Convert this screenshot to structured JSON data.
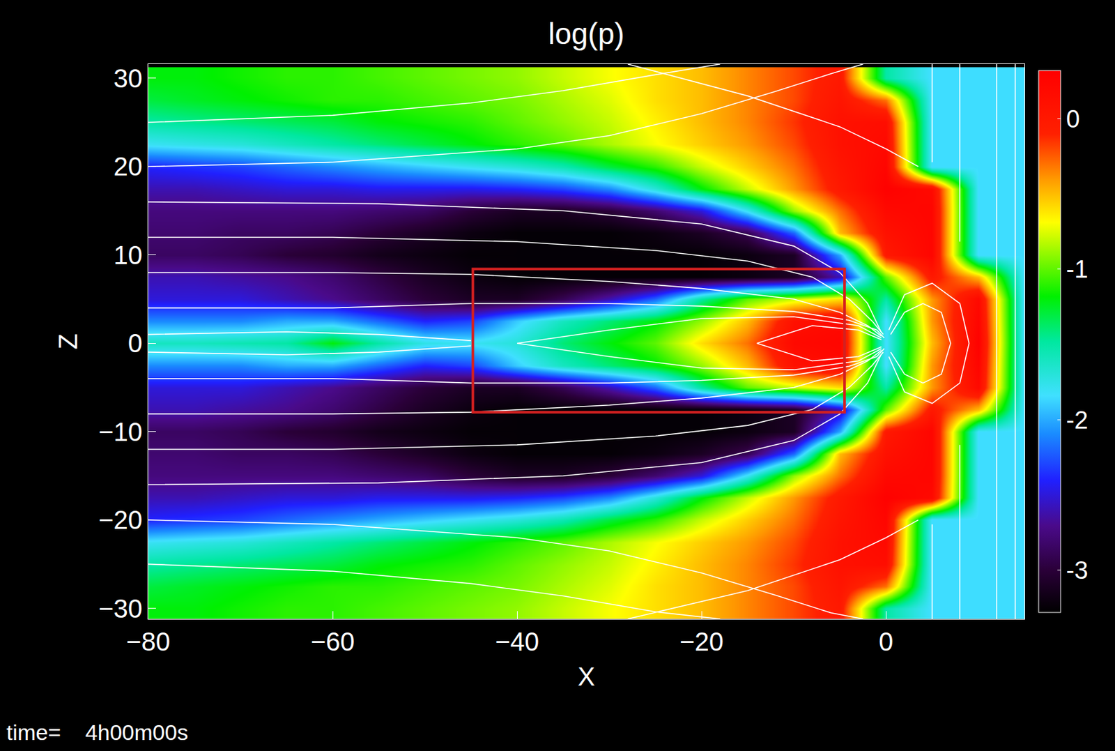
{
  "chart_data": {
    "type": "heatmap",
    "title": "log(p)",
    "x_label": "X",
    "y_label": "Z",
    "annotations": [
      "time=    4h00m00s"
    ],
    "xlim": [
      -80,
      15
    ],
    "ylim": [
      -31.2,
      31.6
    ],
    "xticks": [
      -80,
      -60,
      -40,
      -20,
      0
    ],
    "yticks": [
      -30,
      -20,
      -10,
      0,
      10,
      20,
      30
    ],
    "x": [
      -80,
      -75,
      -70,
      -65,
      -60,
      -55,
      -50,
      -45,
      -40,
      -35,
      -30,
      -25,
      -20,
      -15,
      -10,
      -5,
      0,
      5,
      10,
      15
    ],
    "y": [
      -30,
      -27.5,
      -25,
      -22.5,
      -20,
      -17.5,
      -15,
      -12.5,
      -10,
      -7.5,
      -5,
      -2.5,
      0,
      2.5,
      5,
      7.5,
      10,
      12.5,
      15,
      17.5,
      20,
      22.5,
      25,
      27.5,
      30
    ],
    "values": [
      [
        -1.2,
        -1.2,
        -1.15,
        -1.1,
        -1.1,
        -1.05,
        -1.0,
        -0.95,
        -0.9,
        -0.8,
        -0.7,
        -0.6,
        -0.5,
        -0.35,
        -0.2,
        0.0,
        -1.5,
        -1.85,
        -1.85,
        -1.85
      ],
      [
        -1.3,
        -1.25,
        -1.2,
        -1.15,
        -1.1,
        -1.1,
        -1.05,
        -1.0,
        -0.95,
        -0.85,
        -0.75,
        -0.6,
        -0.5,
        -0.35,
        -0.2,
        0.05,
        -0.3,
        -1.85,
        -1.85,
        -1.85
      ],
      [
        -1.5,
        -1.45,
        -1.4,
        -1.35,
        -1.3,
        -1.2,
        -1.15,
        -1.1,
        -1.0,
        -0.9,
        -0.8,
        -0.65,
        -0.5,
        -0.35,
        -0.15,
        0.1,
        0.15,
        -1.85,
        -1.85,
        -1.85
      ],
      [
        -1.8,
        -1.75,
        -1.7,
        -1.6,
        -1.5,
        -1.4,
        -1.3,
        -1.2,
        -1.1,
        -1.0,
        -0.85,
        -0.7,
        -0.55,
        -0.4,
        -0.2,
        0.1,
        0.2,
        -1.85,
        -1.85,
        -1.85
      ],
      [
        -2.4,
        -2.35,
        -2.3,
        -2.2,
        -2.1,
        -2.0,
        -1.9,
        -1.8,
        -1.7,
        -1.55,
        -1.3,
        -1.1,
        -0.8,
        -0.55,
        -0.3,
        0.05,
        0.25,
        -1.85,
        -1.85,
        -1.85
      ],
      [
        -2.6,
        -2.6,
        -2.55,
        -2.5,
        -2.5,
        -2.45,
        -2.45,
        -2.45,
        -2.4,
        -2.3,
        -2.1,
        -1.7,
        -1.2,
        -0.8,
        -0.4,
        0.0,
        0.3,
        0.2,
        -1.85,
        -1.85
      ],
      [
        -2.75,
        -2.75,
        -2.75,
        -2.75,
        -2.75,
        -2.8,
        -2.85,
        -3.0,
        -3.1,
        -3.1,
        -3.0,
        -2.8,
        -2.5,
        -1.8,
        -0.9,
        -0.3,
        0.2,
        0.25,
        -1.85,
        -1.85
      ],
      [
        -2.8,
        -2.8,
        -2.85,
        -2.85,
        -2.9,
        -3.0,
        -3.1,
        -3.2,
        -3.25,
        -3.25,
        -3.25,
        -3.2,
        -3.1,
        -2.9,
        -2.2,
        -0.5,
        0.1,
        0.25,
        -1.85,
        -1.85
      ],
      [
        -2.85,
        -2.85,
        -2.9,
        -3.0,
        -3.05,
        -3.15,
        -3.2,
        -3.25,
        -3.25,
        -3.25,
        -3.25,
        -3.25,
        -3.25,
        -3.2,
        -3.1,
        -2.0,
        0.0,
        0.25,
        -1.85,
        -1.85
      ],
      [
        -2.6,
        -2.6,
        -2.65,
        -2.7,
        -2.8,
        -2.95,
        -3.1,
        -3.2,
        -3.25,
        -3.25,
        -3.25,
        -3.25,
        -3.25,
        -3.2,
        -3.1,
        -2.6,
        -1.0,
        0.0,
        -0.5,
        -1.85
      ],
      [
        -2.5,
        -2.5,
        -2.5,
        -2.6,
        -2.7,
        -2.85,
        -3.0,
        -3.1,
        -3.1,
        -2.9,
        -2.6,
        -2.2,
        -1.5,
        -1.0,
        -0.8,
        -0.6,
        -1.5,
        -0.4,
        0.2,
        -1.85
      ],
      [
        -2.1,
        -2.1,
        -2.1,
        -2.0,
        -2.0,
        -2.2,
        -2.4,
        -2.3,
        -1.9,
        -1.6,
        -1.4,
        -1.2,
        -0.9,
        -0.5,
        0.1,
        0.2,
        -1.85,
        -0.4,
        0.25,
        -1.85
      ],
      [
        -1.6,
        -1.6,
        -1.55,
        -1.5,
        -1.2,
        -1.5,
        -1.75,
        -1.8,
        -1.7,
        -1.4,
        -1.2,
        -1.0,
        -0.6,
        -0.3,
        0.2,
        0.25,
        -1.85,
        -0.5,
        0.3,
        -1.85
      ],
      [
        -2.1,
        -2.1,
        -2.1,
        -2.0,
        -2.0,
        -2.2,
        -2.4,
        -2.3,
        -1.9,
        -1.6,
        -1.4,
        -1.2,
        -0.9,
        -0.5,
        0.1,
        0.2,
        -1.85,
        -0.4,
        0.25,
        -1.85
      ],
      [
        -2.5,
        -2.5,
        -2.5,
        -2.6,
        -2.7,
        -2.85,
        -3.0,
        -3.1,
        -3.1,
        -2.9,
        -2.6,
        -2.2,
        -1.5,
        -1.0,
        -0.8,
        -0.6,
        -1.5,
        -0.4,
        0.2,
        -1.85
      ],
      [
        -2.6,
        -2.6,
        -2.65,
        -2.7,
        -2.8,
        -2.95,
        -3.1,
        -3.2,
        -3.25,
        -3.25,
        -3.25,
        -3.25,
        -3.25,
        -3.2,
        -3.1,
        -2.6,
        -1.0,
        0.0,
        -0.5,
        -1.85
      ],
      [
        -2.85,
        -2.85,
        -2.9,
        -3.0,
        -3.05,
        -3.15,
        -3.2,
        -3.25,
        -3.25,
        -3.25,
        -3.25,
        -3.25,
        -3.25,
        -3.2,
        -3.1,
        -2.0,
        0.0,
        0.25,
        -1.85,
        -1.85
      ],
      [
        -2.8,
        -2.8,
        -2.85,
        -2.85,
        -2.9,
        -3.0,
        -3.1,
        -3.2,
        -3.25,
        -3.25,
        -3.25,
        -3.2,
        -3.1,
        -2.9,
        -2.2,
        -0.5,
        0.1,
        0.25,
        -1.85,
        -1.85
      ],
      [
        -2.75,
        -2.75,
        -2.75,
        -2.75,
        -2.75,
        -2.8,
        -2.85,
        -3.0,
        -3.1,
        -3.1,
        -3.0,
        -2.8,
        -2.5,
        -1.8,
        -0.9,
        -0.3,
        0.2,
        0.25,
        -1.85,
        -1.85
      ],
      [
        -2.6,
        -2.6,
        -2.55,
        -2.5,
        -2.5,
        -2.45,
        -2.45,
        -2.45,
        -2.4,
        -2.3,
        -2.1,
        -1.7,
        -1.2,
        -0.8,
        -0.4,
        0.0,
        0.3,
        0.2,
        -1.85,
        -1.85
      ],
      [
        -2.4,
        -2.35,
        -2.3,
        -2.2,
        -2.1,
        -2.0,
        -1.9,
        -1.8,
        -1.7,
        -1.55,
        -1.3,
        -1.1,
        -0.8,
        -0.55,
        -0.3,
        0.05,
        0.25,
        -1.85,
        -1.85,
        -1.85
      ],
      [
        -1.8,
        -1.75,
        -1.7,
        -1.6,
        -1.5,
        -1.4,
        -1.3,
        -1.2,
        -1.1,
        -1.0,
        -0.85,
        -0.7,
        -0.55,
        -0.4,
        -0.2,
        0.1,
        0.2,
        -1.85,
        -1.85,
        -1.85
      ],
      [
        -1.5,
        -1.45,
        -1.4,
        -1.35,
        -1.3,
        -1.2,
        -1.15,
        -1.1,
        -1.0,
        -0.9,
        -0.8,
        -0.65,
        -0.5,
        -0.35,
        -0.15,
        0.1,
        0.15,
        -1.85,
        -1.85,
        -1.85
      ],
      [
        -1.3,
        -1.25,
        -1.2,
        -1.15,
        -1.1,
        -1.1,
        -1.05,
        -1.0,
        -0.95,
        -0.85,
        -0.75,
        -0.6,
        -0.5,
        -0.35,
        -0.2,
        0.05,
        -0.3,
        -1.85,
        -1.85,
        -1.85
      ],
      [
        -1.2,
        -1.2,
        -1.15,
        -1.1,
        -1.1,
        -1.05,
        -1.0,
        -0.95,
        -0.9,
        -0.8,
        -0.7,
        -0.6,
        -0.5,
        -0.35,
        -0.2,
        0.0,
        -1.5,
        -1.85,
        -1.85,
        -1.85
      ]
    ],
    "colorbar_range": [
      -3.28,
      0.32
    ],
    "colorbar_ticks": [
      -3,
      -2,
      -1,
      0
    ],
    "field_lines": {
      "color": "#ffffff",
      "lines": [
        {
          "x": [
            -80,
            -60,
            -45,
            -30,
            -20,
            -10,
            -5,
            -2,
            -0.5
          ],
          "y": [
            8,
            8,
            7.8,
            7,
            6.2,
            5,
            3.5,
            2,
            0.8
          ]
        },
        {
          "x": [
            -80,
            -60,
            -45,
            -30,
            -20,
            -10,
            -5,
            -2,
            -0.5
          ],
          "y": [
            -8,
            -8,
            -7.8,
            -7,
            -6.2,
            -5,
            -3.5,
            -2,
            -0.8
          ]
        },
        {
          "x": [
            -80,
            -60,
            -40,
            -25,
            -15,
            -8,
            -4,
            -1.5,
            -0.3
          ],
          "y": [
            12,
            12,
            11.5,
            10.5,
            9.3,
            7.5,
            5,
            2.5,
            1
          ]
        },
        {
          "x": [
            -80,
            -60,
            -40,
            -25,
            -15,
            -8,
            -4,
            -1.5,
            -0.3
          ],
          "y": [
            -12,
            -12,
            -11.5,
            -10.5,
            -9.3,
            -7.5,
            -5,
            -2.5,
            -1
          ]
        },
        {
          "x": [
            -80,
            -55,
            -35,
            -20,
            -10,
            -5,
            -2,
            -0.5
          ],
          "y": [
            16,
            15.8,
            15,
            13.5,
            11,
            8,
            4.5,
            1.2
          ]
        },
        {
          "x": [
            -80,
            -55,
            -35,
            -20,
            -10,
            -5,
            -2,
            -0.5
          ],
          "y": [
            -16,
            -15.8,
            -15,
            -13.5,
            -11,
            -8,
            -4.5,
            -1.2
          ]
        },
        {
          "x": [
            -80,
            -60,
            -40,
            -30,
            -20,
            -12,
            -6,
            -2.5
          ],
          "y": [
            20,
            20.5,
            22,
            23.5,
            26,
            28.5,
            30.5,
            31.6
          ]
        },
        {
          "x": [
            -80,
            -60,
            -40,
            -30,
            -20,
            -12,
            -6,
            -2.5
          ],
          "y": [
            -20,
            -20.5,
            -22,
            -23.5,
            -26,
            -28.5,
            -30.5,
            -31.2
          ]
        },
        {
          "x": [
            -80,
            -60,
            -45,
            -35,
            -25,
            -18
          ],
          "y": [
            25,
            25.8,
            27.2,
            28.6,
            30.4,
            31.6
          ]
        },
        {
          "x": [
            -80,
            -60,
            -45,
            -35,
            -25,
            -18
          ],
          "y": [
            -25,
            -25.8,
            -27.2,
            -28.6,
            -30.4,
            -31.2
          ]
        },
        {
          "x": [
            -80,
            -60,
            -45,
            -30,
            -20,
            -10,
            -4,
            -1,
            -0.2
          ],
          "y": [
            4,
            4,
            4.5,
            4.5,
            4.2,
            3.6,
            2.6,
            1.5,
            0.6
          ]
        },
        {
          "x": [
            -80,
            -60,
            -45,
            -30,
            -20,
            -10,
            -4,
            -1,
            -0.2
          ],
          "y": [
            -4,
            -4,
            -4.5,
            -4.5,
            -4.2,
            -3.6,
            -2.6,
            -1.5,
            -0.6
          ]
        },
        {
          "x": [
            -0.5,
            -3,
            -10,
            -20,
            -30,
            -40,
            -30,
            -20,
            -10,
            -3,
            -0.5
          ],
          "y": [
            0.6,
            2,
            3,
            2.8,
            1.5,
            0,
            -1.5,
            -2.8,
            -3,
            -2,
            -0.6
          ]
        },
        {
          "x": [
            -0.5,
            -3,
            -8,
            -14,
            -8,
            -3,
            -0.5
          ],
          "y": [
            0.4,
            1.5,
            2,
            0,
            -2,
            -1.5,
            -0.4
          ]
        },
        {
          "x": [
            -80,
            -65,
            -55,
            -45
          ],
          "y": [
            1,
            1.3,
            1,
            0.3
          ]
        },
        {
          "x": [
            -80,
            -65,
            -55,
            -45
          ],
          "y": [
            -1,
            -1.3,
            -1,
            -0.3
          ]
        },
        {
          "x": [
            0.5,
            2,
            4,
            6,
            7,
            6,
            4,
            2,
            0.5
          ],
          "y": [
            1,
            3.5,
            4.5,
            3.5,
            0,
            -3.5,
            -4.5,
            -3.5,
            -1
          ]
        },
        {
          "x": [
            0.3,
            2,
            5,
            8,
            9,
            8,
            5,
            2,
            0.3
          ],
          "y": [
            1.5,
            5.5,
            6.8,
            4.5,
            0,
            -4.5,
            -6.8,
            -5.5,
            -1.5
          ]
        },
        {
          "x": [
            12,
            12
          ],
          "y": [
            -31.2,
            31.6
          ]
        },
        {
          "x": [
            14,
            14
          ],
          "y": [
            -31.2,
            31.6
          ]
        },
        {
          "x": [
            5,
            5
          ],
          "y": [
            31.6,
            20.5
          ]
        },
        {
          "x": [
            5,
            5
          ],
          "y": [
            -20.5,
            -31.2
          ]
        },
        {
          "x": [
            8,
            8
          ],
          "y": [
            31.6,
            11.5
          ]
        },
        {
          "x": [
            8,
            8
          ],
          "y": [
            -11.5,
            -31.2
          ]
        },
        {
          "x": [
            3.5,
            0,
            -5,
            -15,
            -28
          ],
          "y": [
            20,
            22,
            24.5,
            28,
            31.6
          ]
        },
        {
          "x": [
            3.5,
            0,
            -5,
            -15,
            -28
          ],
          "y": [
            -20,
            -22,
            -24.5,
            -28,
            -31.2
          ]
        }
      ]
    },
    "box": {
      "x": [
        -44.8,
        -4.5
      ],
      "y": [
        -7.8,
        8.4
      ],
      "color": "#d42020"
    }
  }
}
